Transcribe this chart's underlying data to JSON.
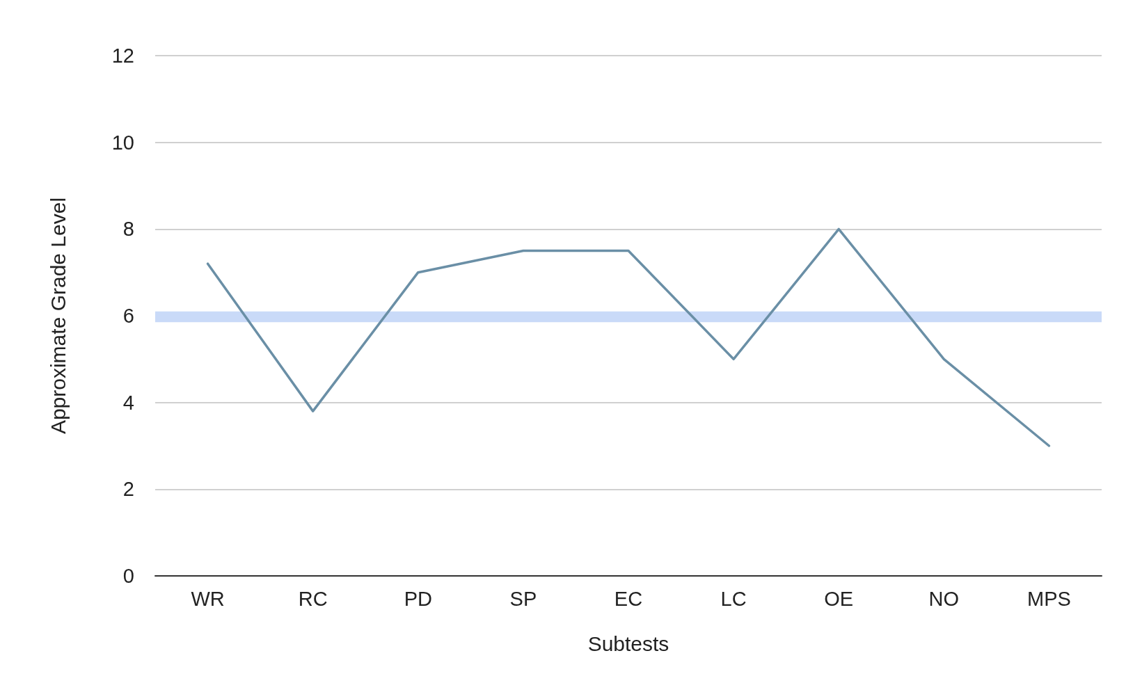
{
  "chart_data": {
    "type": "line",
    "xlabel": "Subtests",
    "ylabel": "Approximate Grade Level",
    "categories": [
      "WR",
      "RC",
      "PD",
      "SP",
      "EC",
      "LC",
      "OE",
      "NO",
      "MPS"
    ],
    "series": [
      {
        "color": "#6a8fa6",
        "values": [
          7.2,
          3.8,
          7,
          7.5,
          7.5,
          5,
          8,
          5,
          3
        ]
      }
    ],
    "ylim": [
      0,
      12
    ],
    "yticks": [
      0,
      2,
      4,
      6,
      8,
      10,
      12
    ],
    "grid": "y",
    "marker": "none",
    "line_style": "solid",
    "bands": [
      {
        "axis": "y",
        "from": 5.85,
        "to": 6.1,
        "color": "#c9daf8"
      }
    ]
  }
}
